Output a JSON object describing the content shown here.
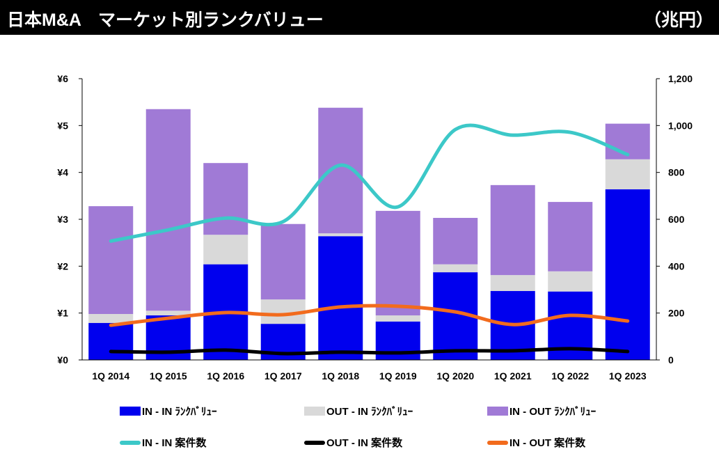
{
  "header": {
    "title": "日本M&A　マーケット別ランクバリュー",
    "unit": "（兆円）"
  },
  "chart_data": {
    "type": "bar+line",
    "categories": [
      "1Q 2014",
      "1Q 2015",
      "1Q 2016",
      "1Q 2017",
      "1Q 2018",
      "1Q 2019",
      "1Q 2020",
      "1Q 2021",
      "1Q 2022",
      "1Q 2023"
    ],
    "stacked": true,
    "y_left": {
      "range": [
        0,
        6
      ],
      "ticks": [
        "¥0",
        "¥1",
        "¥2",
        "¥3",
        "¥4",
        "¥5",
        "¥6"
      ]
    },
    "y_right": {
      "range": [
        0,
        1200
      ],
      "ticks": [
        "0",
        "200",
        "400",
        "600",
        "800",
        "1,000",
        "1,200"
      ]
    },
    "bar_series": [
      {
        "name": "IN - IN ﾗﾝｸﾊﾞﾘｭｰ",
        "color": "#0000ee",
        "values": [
          0.79,
          0.95,
          2.04,
          0.77,
          2.64,
          0.82,
          1.87,
          1.47,
          1.46,
          3.64
        ]
      },
      {
        "name": "OUT - IN ﾗﾝｸﾊﾞﾘｭｰ",
        "color": "#d9d9d9",
        "values": [
          0.19,
          0.1,
          0.63,
          0.52,
          0.06,
          0.13,
          0.17,
          0.34,
          0.43,
          0.64
        ]
      },
      {
        "name": "IN - OUT ﾗﾝｸﾊﾞﾘｭｰ",
        "color": "#a07ad6",
        "values": [
          2.3,
          4.3,
          1.53,
          1.61,
          2.68,
          2.23,
          0.99,
          1.92,
          1.48,
          0.76
        ]
      }
    ],
    "line_series": [
      {
        "name": "IN - IN 案件数",
        "color": "#3cc8c8",
        "values": [
          507,
          555,
          605,
          590,
          831,
          653,
          983,
          959,
          971,
          876
        ]
      },
      {
        "name": "OUT - IN 案件数",
        "color": "#000000",
        "values": [
          36,
          33,
          42,
          27,
          33,
          30,
          39,
          39,
          48,
          36
        ]
      },
      {
        "name": "IN - OUT 案件数",
        "color": "#f26b1d",
        "values": [
          148,
          178,
          202,
          193,
          226,
          229,
          205,
          151,
          190,
          166
        ]
      }
    ],
    "legend": "bottom"
  }
}
